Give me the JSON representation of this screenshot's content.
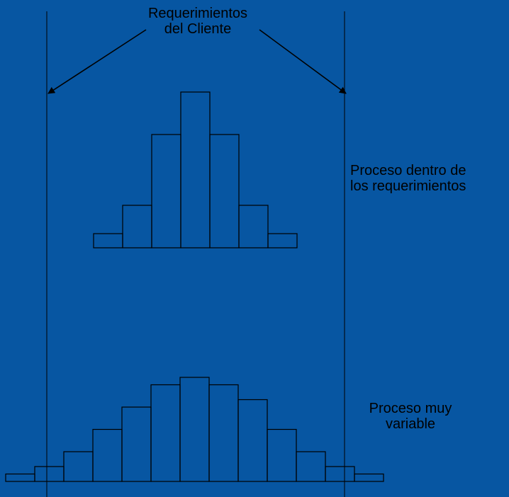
{
  "labels": {
    "customer_requirements": [
      "Requerimientos",
      "del Cliente"
    ],
    "capable_process": [
      "Proceso dentro de",
      "los requerimientos"
    ],
    "variable_process": [
      "Proceso muy",
      "variable"
    ]
  },
  "colors": {
    "background": "#0756a2",
    "ink": "#000000"
  },
  "histograms": {
    "capable": {
      "frequencies": [
        1,
        3,
        8,
        11,
        8,
        3,
        1
      ]
    },
    "variable": {
      "frequencies": [
        1,
        2,
        4,
        7,
        10,
        13,
        14,
        13,
        11,
        7,
        4,
        2,
        1
      ]
    }
  }
}
